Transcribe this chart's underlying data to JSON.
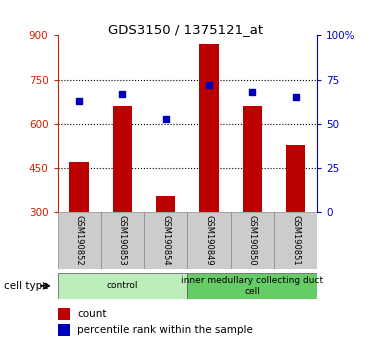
{
  "title": "GDS3150 / 1375121_at",
  "samples": [
    "GSM190852",
    "GSM190853",
    "GSM190854",
    "GSM190849",
    "GSM190850",
    "GSM190851"
  ],
  "counts": [
    470,
    660,
    355,
    870,
    660,
    530
  ],
  "percentiles": [
    63,
    67,
    53,
    72,
    68,
    65
  ],
  "ylim_left": [
    300,
    900
  ],
  "ylim_right": [
    0,
    100
  ],
  "yticks_left": [
    300,
    450,
    600,
    750,
    900
  ],
  "yticks_right": [
    0,
    25,
    50,
    75,
    100
  ],
  "bar_color": "#bb0000",
  "percentile_color": "#0000bb",
  "bar_width": 0.45,
  "groups": [
    {
      "label": "control",
      "indices": [
        0,
        1,
        2
      ],
      "color": "#bbeebb"
    },
    {
      "label": "inner medullary collecting duct\ncell",
      "indices": [
        3,
        4,
        5
      ],
      "color": "#66cc66"
    }
  ],
  "cell_type_label": "cell type",
  "legend_count_label": "count",
  "legend_percentile_label": "percentile rank within the sample",
  "left_axis_color": "#cc2200",
  "right_axis_color": "#0000cc",
  "sample_box_color": "#cccccc",
  "sample_box_edge": "#888888"
}
